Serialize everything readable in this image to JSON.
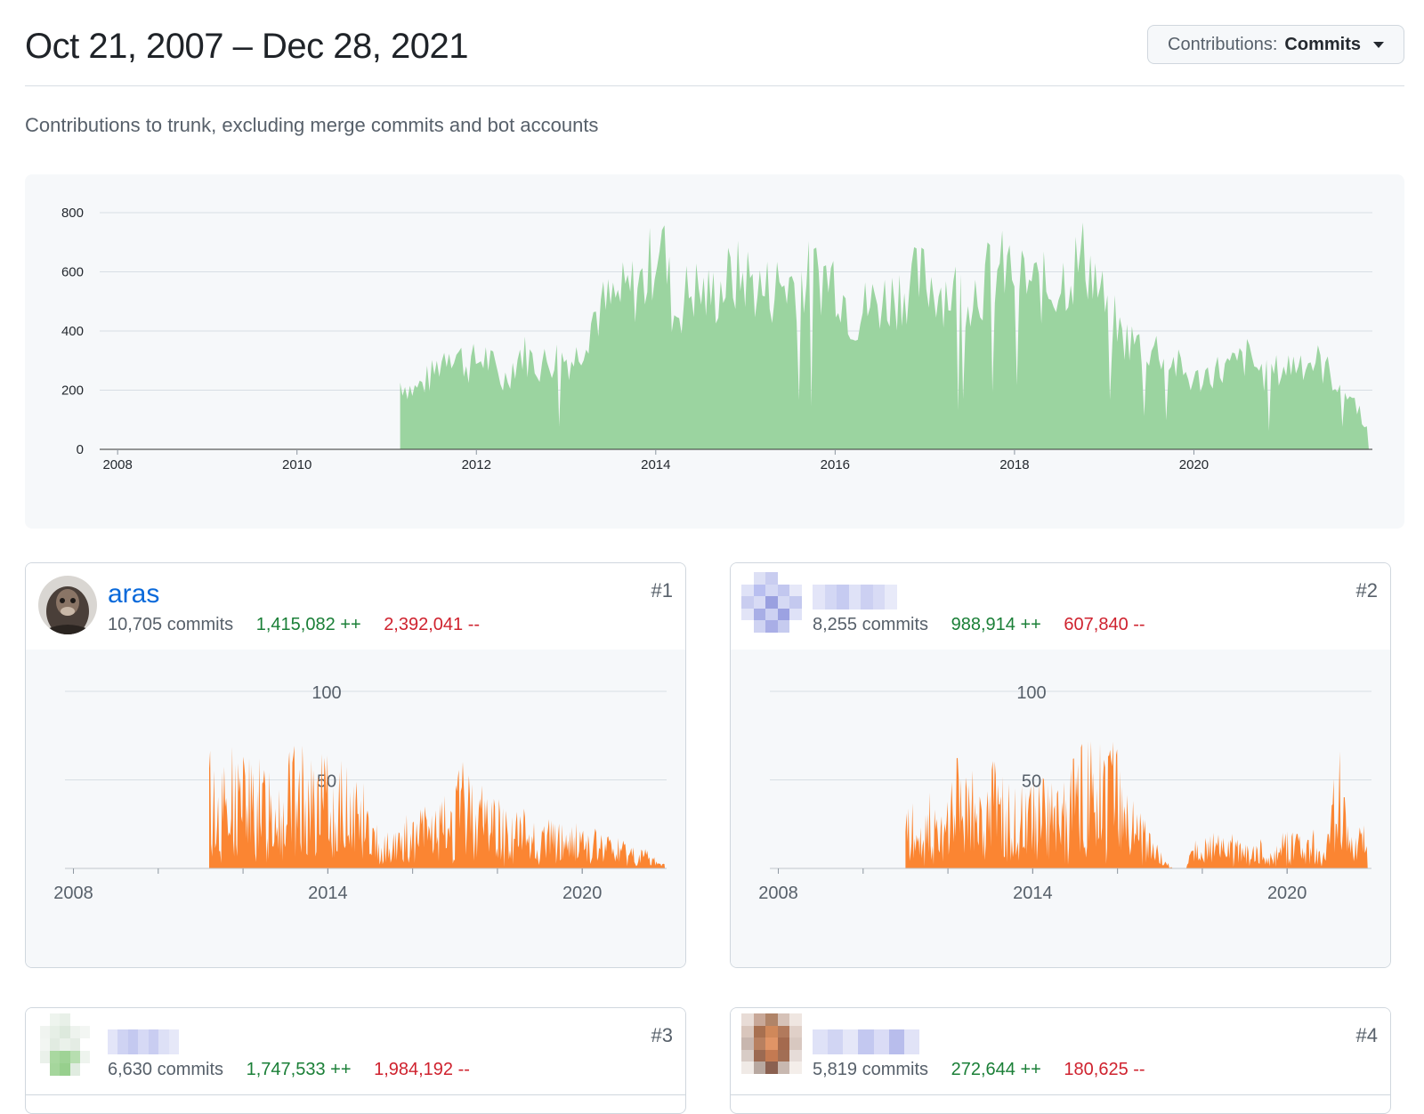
{
  "header": {
    "date_range": "Oct 21, 2007 – Dec 28, 2021",
    "contributions_label": "Contributions:",
    "contributions_value": "Commits"
  },
  "subtitle": "Contributions to trunk, excluding merge commits and bot accounts",
  "colors": {
    "total_fill": "#9bd4a0",
    "contributor_fill": "#fb8532",
    "additions": "#1a7f37",
    "deletions": "#cf222e",
    "link": "#0969da"
  },
  "chart_data": [
    {
      "type": "area",
      "x_ticks": [
        "2008",
        "2010",
        "2012",
        "2014",
        "2016",
        "2018",
        "2020"
      ],
      "y_ticks": [
        "0",
        "200",
        "400",
        "600",
        "800"
      ],
      "ylim": [
        0,
        800
      ],
      "xlim": [
        2007.8,
        2021.99
      ],
      "x": [
        2011.15,
        2011.3,
        2011.5,
        2011.7,
        2011.9,
        2012.1,
        2012.3,
        2012.5,
        2012.7,
        2012.9,
        2013.1,
        2013.3,
        2013.5,
        2013.7,
        2013.9,
        2014.05,
        2014.2,
        2014.4,
        2014.6,
        2014.8,
        2015.0,
        2015.2,
        2015.4,
        2015.6,
        2015.8,
        2016.0,
        2016.2,
        2016.4,
        2016.6,
        2016.8,
        2017.0,
        2017.2,
        2017.4,
        2017.6,
        2017.8,
        2018.0,
        2018.2,
        2018.4,
        2018.6,
        2018.8,
        2019.0,
        2019.2,
        2019.4,
        2019.6,
        2019.8,
        2020.0,
        2020.2,
        2020.4,
        2020.6,
        2020.8,
        2021.0,
        2021.2,
        2021.4,
        2021.6,
        2021.8,
        2021.95
      ],
      "values": [
        240,
        210,
        260,
        370,
        300,
        330,
        240,
        350,
        300,
        330,
        320,
        480,
        520,
        560,
        610,
        790,
        480,
        580,
        540,
        600,
        620,
        560,
        590,
        600,
        620,
        620,
        470,
        520,
        540,
        580,
        610,
        570,
        560,
        580,
        640,
        640,
        580,
        570,
        630,
        690,
        520,
        400,
        370,
        360,
        300,
        240,
        280,
        290,
        330,
        260,
        290,
        320,
        310,
        240,
        170,
        60
      ]
    },
    {
      "type": "area",
      "x_ticks": [
        "2008",
        "2014",
        "2020"
      ],
      "y_ticks": [
        "50",
        "100"
      ],
      "ylim": [
        0,
        100
      ],
      "xlim": [
        2007.8,
        2021.99
      ],
      "x": [
        2011.2,
        2011.5,
        2011.8,
        2012.1,
        2012.4,
        2012.7,
        2013.0,
        2013.3,
        2013.6,
        2013.9,
        2014.2,
        2014.5,
        2014.8,
        2015.1,
        2015.4,
        2015.7,
        2016.0,
        2016.3,
        2016.6,
        2016.9,
        2017.2,
        2017.5,
        2017.8,
        2018.1,
        2018.4,
        2018.7,
        2019.0,
        2019.3,
        2019.6,
        2019.9,
        2020.2,
        2020.5,
        2020.8,
        2021.1,
        2021.4,
        2021.7,
        2021.95
      ],
      "values": [
        58,
        45,
        60,
        52,
        48,
        55,
        50,
        58,
        47,
        52,
        45,
        50,
        42,
        20,
        18,
        25,
        22,
        30,
        28,
        35,
        48,
        40,
        38,
        30,
        26,
        28,
        24,
        22,
        20,
        22,
        18,
        16,
        15,
        12,
        10,
        6,
        3
      ]
    },
    {
      "type": "area",
      "x_ticks": [
        "2008",
        "2014",
        "2020"
      ],
      "y_ticks": [
        "50",
        "100"
      ],
      "ylim": [
        0,
        100
      ],
      "xlim": [
        2007.8,
        2021.99
      ],
      "x": [
        2011.0,
        2011.3,
        2011.6,
        2011.9,
        2012.2,
        2012.5,
        2012.8,
        2013.1,
        2013.4,
        2013.7,
        2014.0,
        2014.3,
        2014.6,
        2014.9,
        2015.2,
        2015.5,
        2015.8,
        2016.1,
        2016.4,
        2016.7,
        2017.0,
        2017.3,
        2017.6,
        2017.9,
        2018.2,
        2018.5,
        2018.8,
        2019.1,
        2019.4,
        2019.7,
        2020.0,
        2020.3,
        2020.6,
        2020.9,
        2021.2,
        2021.5,
        2021.9
      ],
      "values": [
        38,
        26,
        42,
        20,
        50,
        45,
        40,
        48,
        38,
        35,
        44,
        42,
        40,
        48,
        55,
        60,
        78,
        38,
        30,
        22,
        10,
        0,
        0,
        18,
        16,
        20,
        14,
        10,
        16,
        8,
        20,
        14,
        18,
        6,
        56,
        26,
        20
      ]
    }
  ],
  "contributors": [
    {
      "rank": "#1",
      "username": "aras",
      "commits": "10,705 commits",
      "additions": "1,415,082 ++",
      "deletions": "2,392,041 --"
    },
    {
      "rank": "#2",
      "username": "",
      "commits": "8,255 commits",
      "additions": "988,914 ++",
      "deletions": "607,840 --"
    },
    {
      "rank": "#3",
      "username": "",
      "commits": "6,630 commits",
      "additions": "1,747,533 ++",
      "deletions": "1,984,192 --"
    },
    {
      "rank": "#4",
      "username": "",
      "commits": "5,819 commits",
      "additions": "272,644 ++",
      "deletions": "180,625 --"
    }
  ]
}
